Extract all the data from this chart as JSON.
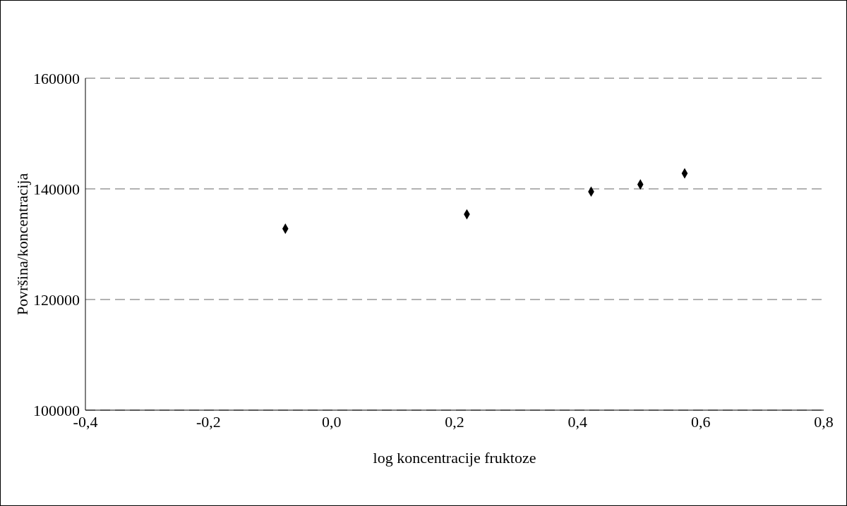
{
  "chart_data": {
    "type": "scatter",
    "xlabel": "log koncentracije fruktoze",
    "ylabel": "Površina/koncentracija",
    "x": [
      -0.075,
      0.22,
      0.422,
      0.502,
      0.574
    ],
    "series": [
      {
        "color": "#000000",
        "values": [
          132800,
          135400,
          139500,
          140800,
          142800
        ]
      }
    ],
    "xlim": [
      -0.4,
      0.8
    ],
    "xticks": [
      {
        "value": -0.4,
        "label": "-0,4"
      },
      {
        "value": -0.2,
        "label": "-0,2"
      },
      {
        "value": 0,
        "label": "0,0"
      },
      {
        "value": 0.2,
        "label": "0,2"
      },
      {
        "value": 0.4,
        "label": "0,4"
      },
      {
        "value": 0.6,
        "label": "0,6"
      },
      {
        "value": 0.8,
        "label": "0,8"
      }
    ],
    "ylim": [
      100000,
      160000
    ],
    "yticks": [
      100000,
      120000,
      140000,
      160000
    ],
    "grid": "y",
    "marker": "diamond",
    "legend": false
  }
}
